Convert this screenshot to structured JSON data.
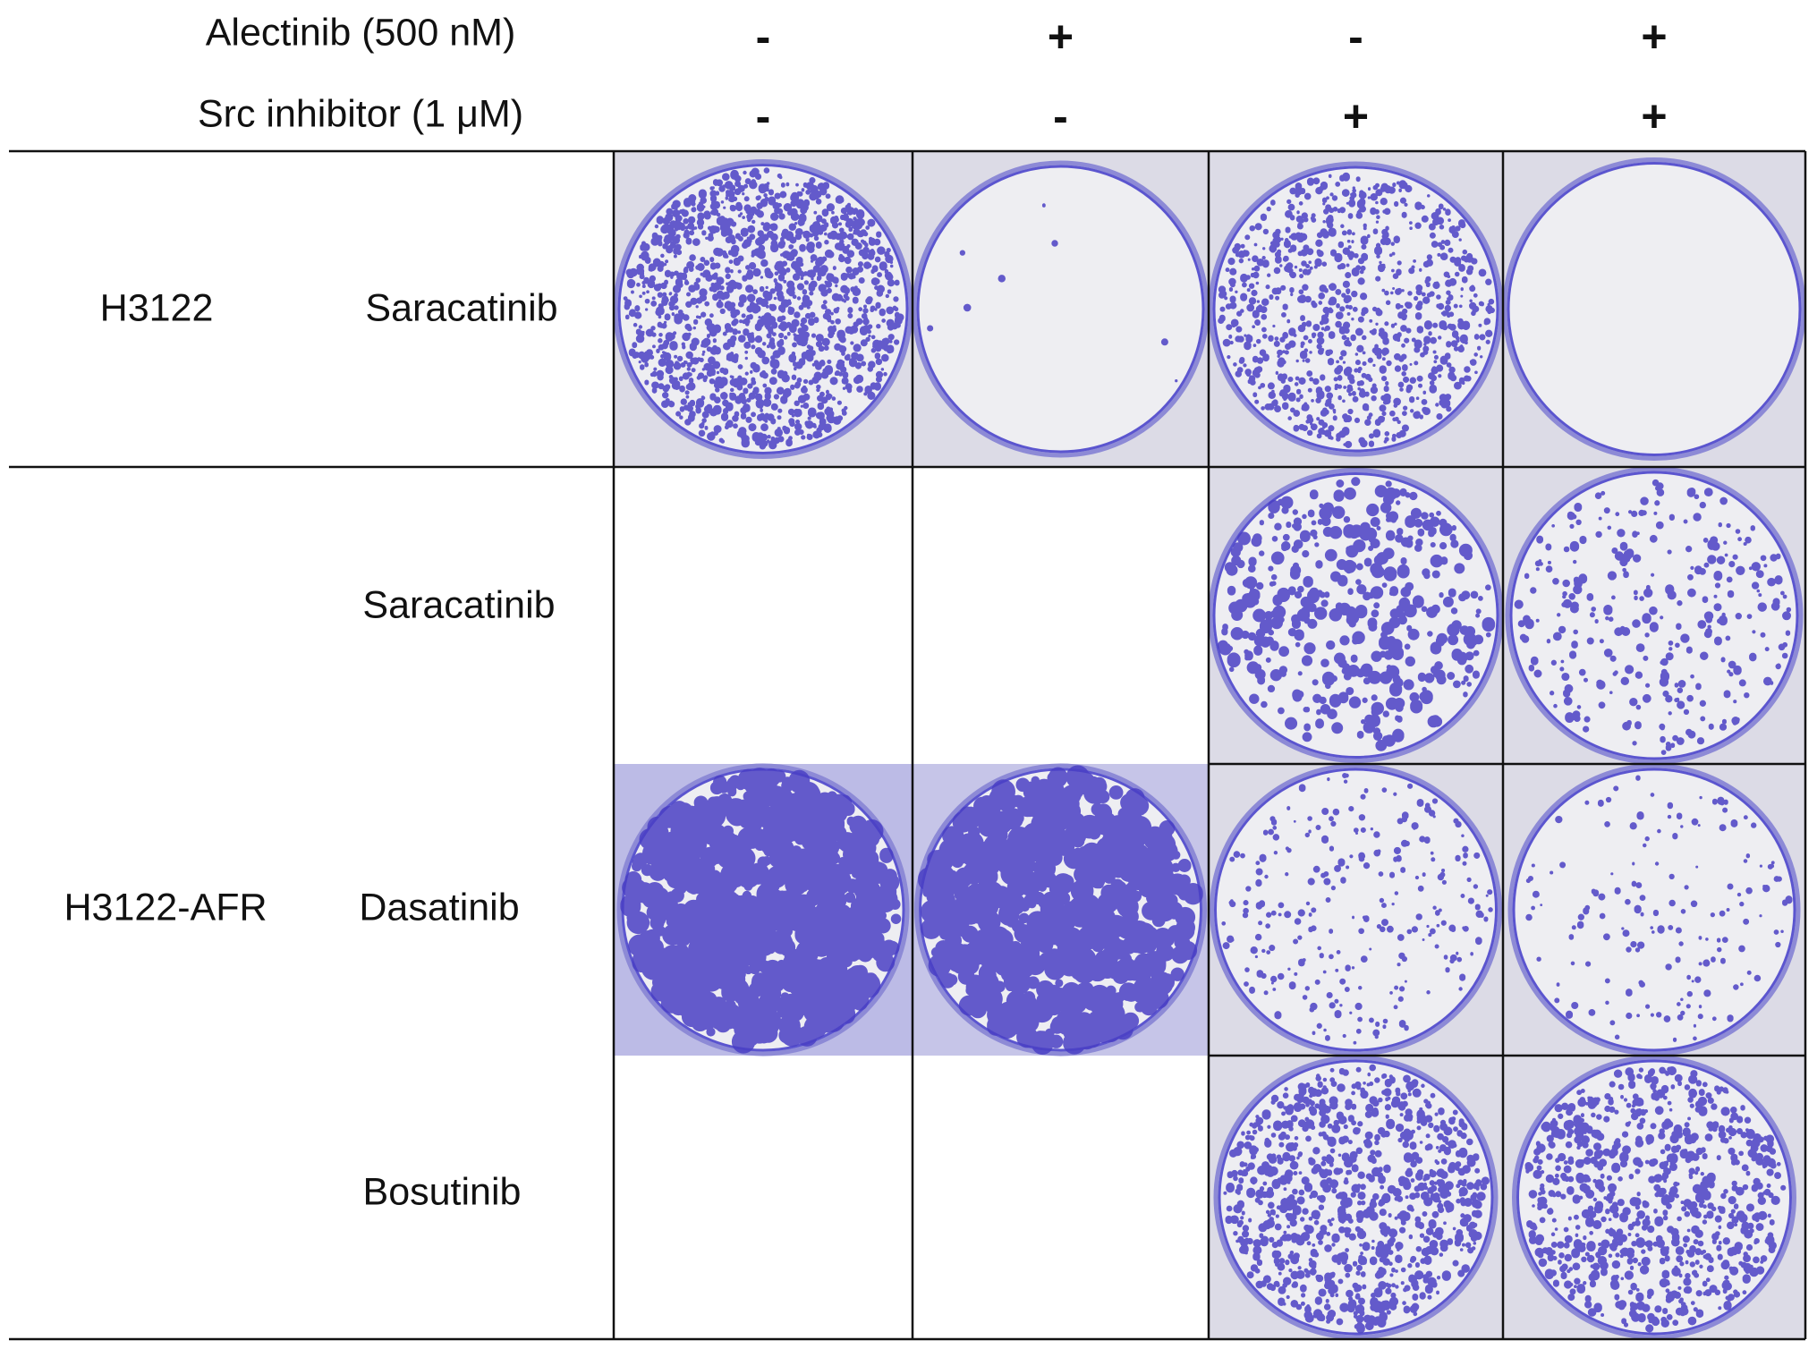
{
  "header": {
    "rows": [
      {
        "label": "Alectinib (500 nM)",
        "signs": [
          "-",
          "+",
          "-",
          "+"
        ]
      },
      {
        "label": "Src inhibitor (1 μM)",
        "signs": [
          "-",
          "-",
          "+",
          "+"
        ]
      }
    ]
  },
  "table": {
    "groups": [
      {
        "cell_line": "H3122",
        "rows": [
          {
            "inhibitor": "Saracatinib"
          }
        ]
      },
      {
        "cell_line": "H3122-AFR",
        "rows": [
          {
            "inhibitor": "Saracatinib"
          },
          {
            "inhibitor": "Dasatinib"
          },
          {
            "inhibitor": "Bosutinib"
          }
        ]
      }
    ]
  }
}
